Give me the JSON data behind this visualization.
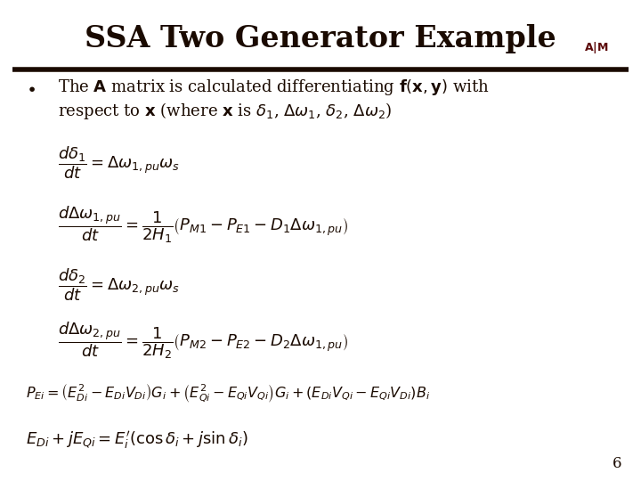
{
  "title": "SSA Two Generator Example",
  "title_color": "#1a0a00",
  "title_fontsize": 24,
  "bg_color": "#ffffff",
  "bar_color": "#1a0a00",
  "text_color": "#1a0a00",
  "page_number": "6",
  "bullet_text": "The $\\mathbf{A}$ matrix is calculated differentiating $\\mathbf{f}(\\mathbf{x},\\mathbf{y})$ with\nrespect to $\\mathbf{x}$ (where $\\mathbf{x}$ is $\\delta_1$, $\\Delta\\omega_1$, $\\delta_2$, $\\Delta\\omega_2$)",
  "eq1": "$\\dfrac{d\\delta_1}{dt} = \\Delta\\omega_{1,pu}\\omega_s$",
  "eq2": "$\\dfrac{d\\Delta\\omega_{1,pu}}{dt} = \\dfrac{1}{2H_1}\\left(P_{M1} - P_{E1} - D_1\\Delta\\omega_{1,pu}\\right)$",
  "eq3": "$\\dfrac{d\\delta_2}{dt} = \\Delta\\omega_{2,pu}\\omega_s$",
  "eq4": "$\\dfrac{d\\Delta\\omega_{2,pu}}{dt} = \\dfrac{1}{2H_2}\\left(P_{M2} - P_{E2} - D_2\\Delta\\omega_{1,pu}\\right)$",
  "eq5": "$P_{Ei} = \\left(E_{Di}^2 - E_{Di}V_{Di}\\right)G_i + \\left(E_{Qi}^2 - E_{Qi}V_{Qi}\\right)G_i + \\left(E_{Di}V_{Qi} - E_{Qi}V_{Di}\\right)B_i$",
  "eq6": "$E_{Di} + jE_{Qi} = E_i^{\\prime}\\left(\\cos\\delta_i + j\\sin\\delta_i\\right)$"
}
